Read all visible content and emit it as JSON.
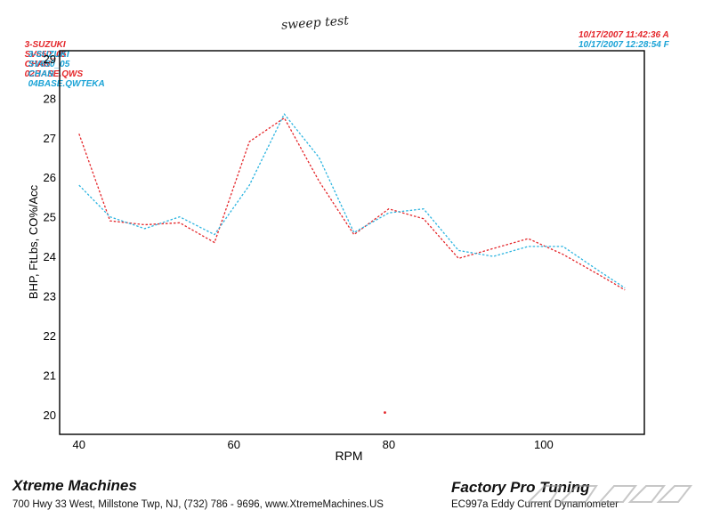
{
  "header": {
    "run1": {
      "vehicle": "3-SUZUKI",
      "model": "SV650_05",
      "chan": "CHAN",
      "file": "02BASE.QWS",
      "datetime": "10/17/2007 11:42:36 A"
    },
    "run2": {
      "vehicle": "3-SUZUKI",
      "model": "SV650_05",
      "chan": "CHAN",
      "file": "04BASE.QWTEKA",
      "datetime": "10/17/2007 12:28:54 F"
    }
  },
  "handwritten_note": "sweep test",
  "colors": {
    "run1": "#e4262a",
    "run2": "#2bb4e0",
    "axis": "#000000"
  },
  "chart_data": {
    "type": "line",
    "xlabel": "RPM",
    "ylabel": "BHP, FtLbs, CO%/Acc",
    "xlim": [
      37.5,
      113
    ],
    "ylim": [
      19.5,
      29.2
    ],
    "xticks": [
      40,
      60,
      80,
      100
    ],
    "yticks": [
      20,
      21,
      22,
      23,
      24,
      25,
      26,
      27,
      28,
      29
    ],
    "grid": false,
    "series": [
      {
        "name": "02BASE.QWS",
        "color": "#e4262a",
        "x": [
          40,
          44,
          48.5,
          53,
          57.5,
          62,
          66.5,
          71,
          75.5,
          80,
          84.5,
          89,
          93.5,
          98,
          102.5,
          107,
          110.5
        ],
        "y": [
          27.1,
          24.9,
          24.8,
          24.85,
          24.35,
          26.9,
          27.5,
          25.9,
          24.55,
          25.2,
          24.95,
          23.95,
          24.2,
          24.45,
          24.05,
          23.55,
          23.15
        ]
      },
      {
        "name": "04BASE.QWTEKA",
        "color": "#2bb4e0",
        "x": [
          40,
          44,
          48.5,
          53,
          57.5,
          62,
          66.5,
          71,
          75.5,
          80,
          84.5,
          89,
          93.5,
          98,
          102.5,
          107,
          110.5
        ],
        "y": [
          25.8,
          25.0,
          24.7,
          25.0,
          24.55,
          25.8,
          27.6,
          26.5,
          24.6,
          25.1,
          25.2,
          24.15,
          24.0,
          24.25,
          24.25,
          23.65,
          23.2
        ]
      }
    ],
    "annotations": [
      {
        "x": 79.5,
        "y": 20.05,
        "color": "#e4262a"
      }
    ]
  },
  "footer": {
    "company": "Xtreme Machines",
    "address": "700 Hwy 33 West, Millstone Twp, NJ, (732) 786 - 9696, www.XtremeMachines.US",
    "brand": "Factory Pro Tuning",
    "model": "EC997a  Eddy Current Dynamometer"
  }
}
